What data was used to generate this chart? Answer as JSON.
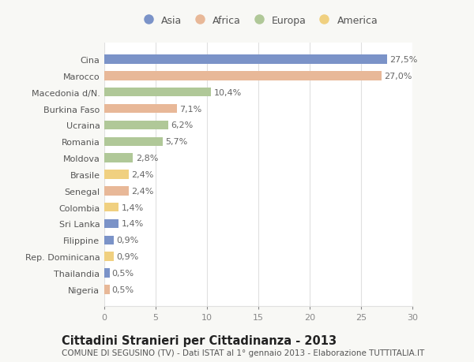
{
  "categories": [
    "Cina",
    "Marocco",
    "Macedonia d/N.",
    "Burkina Faso",
    "Ucraina",
    "Romania",
    "Moldova",
    "Brasile",
    "Senegal",
    "Colombia",
    "Sri Lanka",
    "Filippine",
    "Rep. Dominicana",
    "Thailandia",
    "Nigeria"
  ],
  "values": [
    27.5,
    27.0,
    10.4,
    7.1,
    6.2,
    5.7,
    2.8,
    2.4,
    2.4,
    1.4,
    1.4,
    0.9,
    0.9,
    0.5,
    0.5
  ],
  "labels": [
    "27,5%",
    "27,0%",
    "10,4%",
    "7,1%",
    "6,2%",
    "5,7%",
    "2,8%",
    "2,4%",
    "2,4%",
    "1,4%",
    "1,4%",
    "0,9%",
    "0,9%",
    "0,5%",
    "0,5%"
  ],
  "continents": [
    "Asia",
    "Africa",
    "Europa",
    "Africa",
    "Europa",
    "Europa",
    "Europa",
    "America",
    "Africa",
    "America",
    "Asia",
    "Asia",
    "America",
    "Asia",
    "Africa"
  ],
  "continent_colors": {
    "Asia": "#7b93c8",
    "Africa": "#e8b898",
    "Europa": "#b0c898",
    "America": "#f0d080"
  },
  "legend_order": [
    "Asia",
    "Africa",
    "Europa",
    "America"
  ],
  "title": "Cittadini Stranieri per Cittadinanza - 2013",
  "subtitle": "COMUNE DI SEGUSINO (TV) - Dati ISTAT al 1° gennaio 2013 - Elaborazione TUTTITALIA.IT",
  "xlim": [
    0,
    30
  ],
  "xticks": [
    0,
    5,
    10,
    15,
    20,
    25,
    30
  ],
  "bg_color": "#f8f8f5",
  "plot_bg_color": "#ffffff",
  "grid_color": "#e0e0e0",
  "title_fontsize": 10.5,
  "subtitle_fontsize": 7.5,
  "label_fontsize": 8,
  "tick_fontsize": 8,
  "legend_fontsize": 9
}
